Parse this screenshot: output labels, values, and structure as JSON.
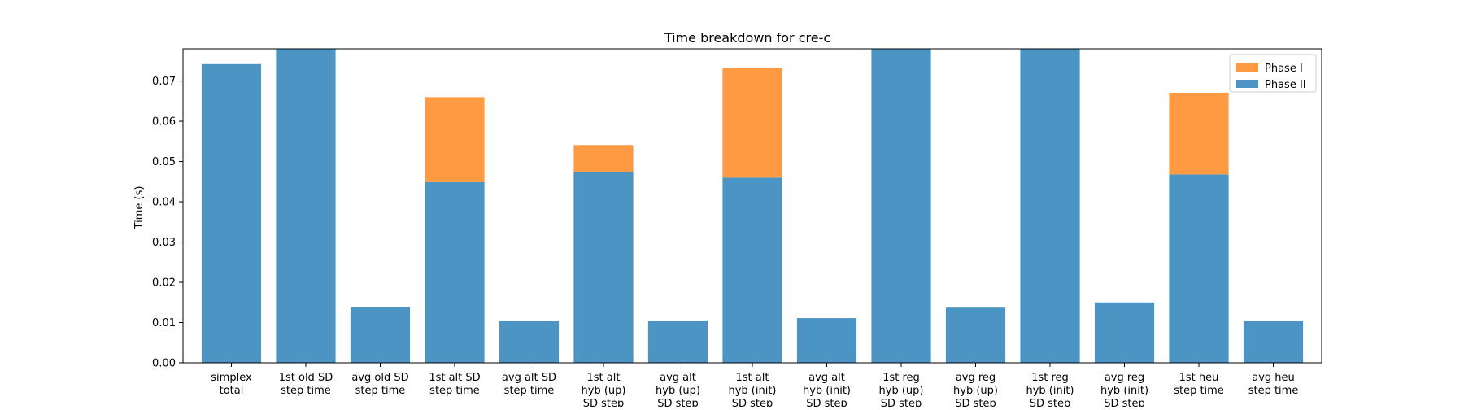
{
  "chart_data": {
    "type": "bar",
    "stacked": true,
    "title": "Time breakdown for cre-c",
    "xlabel": "",
    "ylabel": "Time (s)",
    "ylim": [
      0,
      0.078
    ],
    "yticks": [
      "0.00",
      "0.01",
      "0.02",
      "0.03",
      "0.04",
      "0.05",
      "0.06",
      "0.07"
    ],
    "legend_position": "top-right",
    "categories": [
      [
        "simplex",
        "total"
      ],
      [
        "1st old SD",
        "step time"
      ],
      [
        "avg old SD",
        "step time"
      ],
      [
        "1st alt SD",
        "step time"
      ],
      [
        "avg alt SD",
        "step time"
      ],
      [
        "1st alt",
        "hyb (up)",
        "SD step"
      ],
      [
        "avg alt",
        "hyb (up)",
        "SD step"
      ],
      [
        "1st alt",
        "hyb (init)",
        "SD step"
      ],
      [
        "avg alt",
        "hyb (init)",
        "SD step"
      ],
      [
        "1st reg",
        "hyb (up)",
        "SD step"
      ],
      [
        "avg reg",
        "hyb (up)",
        "SD step"
      ],
      [
        "1st reg",
        "hyb (init)",
        "SD step"
      ],
      [
        "avg reg",
        "hyb (init)",
        "SD step"
      ],
      [
        "1st heu",
        "step time"
      ],
      [
        "avg heu",
        "step time"
      ]
    ],
    "series": [
      {
        "name": "Phase II",
        "color": "#4c94c4",
        "values": [
          0.0742,
          0.078,
          0.0138,
          0.0449,
          0.0105,
          0.0475,
          0.0105,
          0.046,
          0.0111,
          0.078,
          0.0137,
          0.078,
          0.015,
          0.0468,
          0.0105
        ]
      },
      {
        "name": "Phase I",
        "color": "#fe9a41",
        "values": [
          0,
          0,
          0,
          0.0211,
          0,
          0.0066,
          0,
          0.0272,
          0,
          0,
          0,
          0,
          0,
          0.0203,
          0
        ]
      }
    ],
    "legend_order": [
      "Phase I",
      "Phase II"
    ]
  }
}
